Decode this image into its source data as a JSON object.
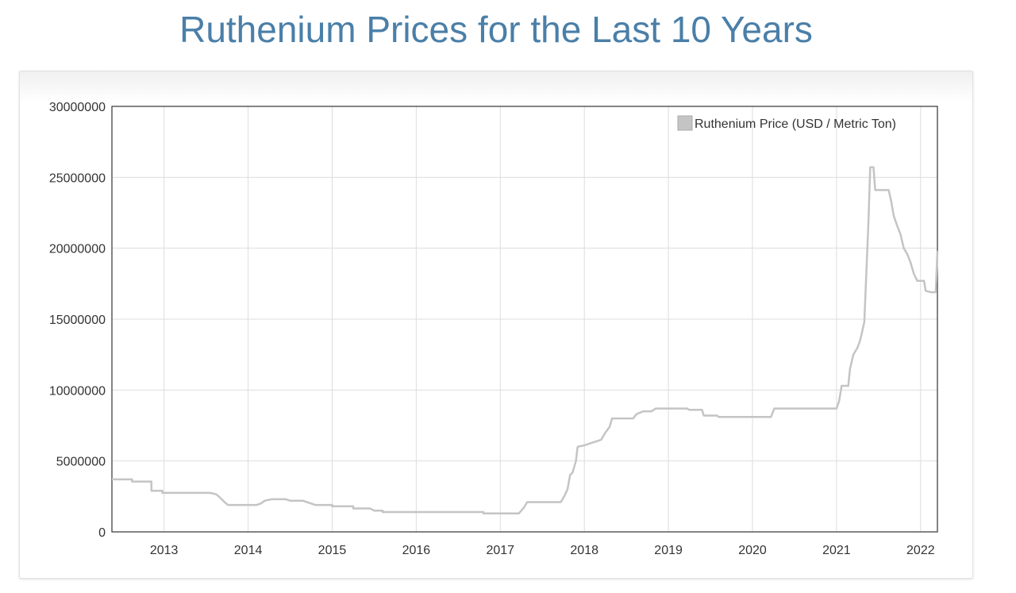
{
  "chart_data": {
    "type": "line",
    "title": "Ruthenium Prices for the Last 10 Years",
    "xlabel": "",
    "ylabel": "",
    "legend": {
      "label": "Ruthenium Price (USD / Metric Ton)",
      "position": "top-right"
    },
    "xlim": [
      2012.38,
      2022.2
    ],
    "ylim": [
      0,
      30000000
    ],
    "grid": true,
    "x_ticks": [
      2013,
      2014,
      2015,
      2016,
      2017,
      2018,
      2019,
      2020,
      2021,
      2022
    ],
    "x_tick_labels": [
      "2013",
      "2014",
      "2015",
      "2016",
      "2017",
      "2018",
      "2019",
      "2020",
      "2021",
      "2022"
    ],
    "y_ticks": [
      0,
      5000000,
      10000000,
      15000000,
      20000000,
      25000000,
      30000000
    ],
    "y_tick_labels": [
      "0",
      "5000000",
      "10000000",
      "15000000",
      "20000000",
      "25000000",
      "30000000"
    ],
    "series": [
      {
        "name": "Ruthenium Price (USD / Metric Ton)",
        "color": "#c4c4c4",
        "points": [
          [
            2012.38,
            3700000
          ],
          [
            2012.62,
            3700000
          ],
          [
            2012.62,
            3550000
          ],
          [
            2012.85,
            3550000
          ],
          [
            2012.85,
            2900000
          ],
          [
            2012.98,
            2900000
          ],
          [
            2012.98,
            2750000
          ],
          [
            2013.55,
            2750000
          ],
          [
            2013.62,
            2650000
          ],
          [
            2013.66,
            2450000
          ],
          [
            2013.72,
            2100000
          ],
          [
            2013.76,
            1900000
          ],
          [
            2014.1,
            1900000
          ],
          [
            2014.15,
            2000000
          ],
          [
            2014.2,
            2200000
          ],
          [
            2014.28,
            2300000
          ],
          [
            2014.45,
            2300000
          ],
          [
            2014.5,
            2200000
          ],
          [
            2014.65,
            2200000
          ],
          [
            2014.75,
            2000000
          ],
          [
            2014.8,
            1900000
          ],
          [
            2015.0,
            1900000
          ],
          [
            2015.0,
            1800000
          ],
          [
            2015.25,
            1800000
          ],
          [
            2015.25,
            1650000
          ],
          [
            2015.45,
            1650000
          ],
          [
            2015.5,
            1500000
          ],
          [
            2015.6,
            1500000
          ],
          [
            2015.6,
            1400000
          ],
          [
            2016.8,
            1400000
          ],
          [
            2016.8,
            1300000
          ],
          [
            2017.22,
            1300000
          ],
          [
            2017.28,
            1700000
          ],
          [
            2017.32,
            2100000
          ],
          [
            2017.72,
            2100000
          ],
          [
            2017.76,
            2500000
          ],
          [
            2017.8,
            3000000
          ],
          [
            2017.83,
            4000000
          ],
          [
            2017.86,
            4200000
          ],
          [
            2017.9,
            5000000
          ],
          [
            2017.92,
            6000000
          ],
          [
            2018.0,
            6100000
          ],
          [
            2018.1,
            6300000
          ],
          [
            2018.2,
            6500000
          ],
          [
            2018.25,
            7000000
          ],
          [
            2018.3,
            7400000
          ],
          [
            2018.33,
            8000000
          ],
          [
            2018.58,
            8000000
          ],
          [
            2018.62,
            8300000
          ],
          [
            2018.7,
            8500000
          ],
          [
            2018.8,
            8500000
          ],
          [
            2018.85,
            8700000
          ],
          [
            2019.22,
            8700000
          ],
          [
            2019.25,
            8600000
          ],
          [
            2019.4,
            8600000
          ],
          [
            2019.42,
            8200000
          ],
          [
            2019.58,
            8200000
          ],
          [
            2019.6,
            8100000
          ],
          [
            2020.22,
            8100000
          ],
          [
            2020.26,
            8700000
          ],
          [
            2021.0,
            8700000
          ],
          [
            2021.03,
            9200000
          ],
          [
            2021.06,
            10300000
          ],
          [
            2021.14,
            10300000
          ],
          [
            2021.16,
            11500000
          ],
          [
            2021.2,
            12500000
          ],
          [
            2021.25,
            13000000
          ],
          [
            2021.28,
            13500000
          ],
          [
            2021.3,
            14000000
          ],
          [
            2021.33,
            14800000
          ],
          [
            2021.36,
            19000000
          ],
          [
            2021.38,
            22000000
          ],
          [
            2021.4,
            25700000
          ],
          [
            2021.44,
            25700000
          ],
          [
            2021.46,
            24100000
          ],
          [
            2021.62,
            24100000
          ],
          [
            2021.65,
            23300000
          ],
          [
            2021.68,
            22300000
          ],
          [
            2021.72,
            21600000
          ],
          [
            2021.76,
            21000000
          ],
          [
            2021.8,
            20000000
          ],
          [
            2021.84,
            19600000
          ],
          [
            2021.88,
            19000000
          ],
          [
            2021.92,
            18200000
          ],
          [
            2021.96,
            17700000
          ],
          [
            2022.04,
            17700000
          ],
          [
            2022.06,
            17000000
          ],
          [
            2022.12,
            16900000
          ],
          [
            2022.18,
            16900000
          ],
          [
            2022.2,
            19800000
          ]
        ]
      }
    ]
  }
}
